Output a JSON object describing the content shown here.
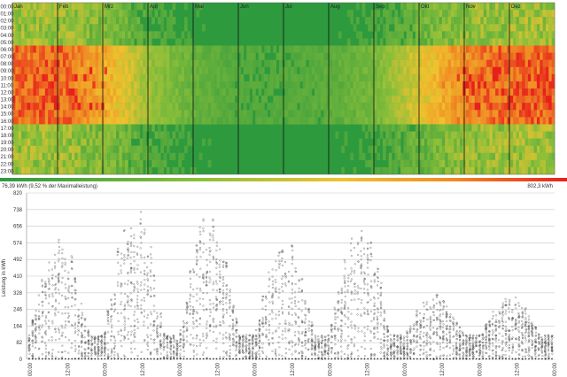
{
  "chart_data": [
    {
      "type": "heatmap",
      "months": [
        "Jan",
        "Feb",
        "Mrz",
        "Apr",
        "Mai",
        "Jun",
        "Jul",
        "Aug",
        "Sep",
        "Okt",
        "Nov",
        "Dez"
      ],
      "hours": [
        "00:00",
        "01:00",
        "02:00",
        "03:00",
        "04:00",
        "05:00",
        "06:00",
        "07:00",
        "08:00",
        "09:00",
        "10:00",
        "11:00",
        "12:00",
        "13:00",
        "14:00",
        "15:00",
        "16:00",
        "17:00",
        "18:00",
        "19:00",
        "20:00",
        "21:00",
        "22:00",
        "23:00"
      ],
      "color_scale": {
        "min_label": "76,39 kWh (9,52 % der Maximalleistung)",
        "max_label": "802,3 kWh",
        "colors": [
          "#2e9a3e",
          "#8bbf3a",
          "#f0c22e",
          "#f08a24",
          "#e8201c"
        ]
      },
      "monthly_level": [
        0.82,
        0.85,
        0.62,
        0.28,
        0.15,
        0.1,
        0.1,
        0.12,
        0.2,
        0.45,
        0.75,
        0.85
      ],
      "high_load_hours": [
        "06:00",
        "17:00"
      ]
    },
    {
      "type": "scatter",
      "ylabel": "Leistung in kWh",
      "yticks": [
        0,
        82,
        164,
        246,
        328,
        410,
        492,
        574,
        656,
        738,
        820
      ],
      "ylim": [
        0,
        820
      ],
      "xticks": [
        "00:00",
        "12:00",
        "00:00",
        "12:00",
        "00:00",
        "12:00",
        "00:00",
        "12:00",
        "00:00",
        "12:00",
        "00:00",
        "12:00",
        "00:00",
        "12:00",
        "00:00"
      ],
      "grid": true,
      "week_peaks": [
        650,
        800,
        740,
        620,
        700,
        330,
        330
      ]
    }
  ]
}
